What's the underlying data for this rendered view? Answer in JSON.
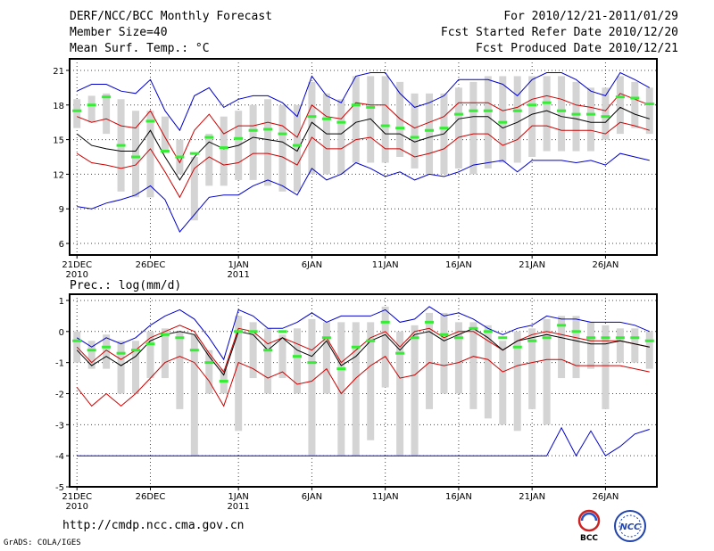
{
  "header": {
    "title": "DERF/NCC/BCC Monthly Forecast",
    "member_size": "Member Size=40",
    "variable": "Mean Surf. Temp.: °C",
    "period": "For 2010/12/21-2011/01/29",
    "started": "Fcst Started Refer Date 2010/12/20",
    "produced": "Fcst Produced Date 2010/12/21"
  },
  "footer": {
    "url": "http://cmdp.ncc.cma.gov.cn",
    "credit": "GrADS: COLA/IGES",
    "logo_bcc": "BCC",
    "logo_ncc": "NCC"
  },
  "colors": {
    "ensemble_mean": "#000000",
    "spread_lines": "#cc0000",
    "extremes": "#0000cc",
    "box": "#d4d4d4",
    "climatology": "#33ee33",
    "grid": "#444444"
  },
  "chart_data": [
    {
      "type": "line",
      "name": "temperature",
      "title": "Mean Surf. Temp.: °C",
      "xlabel": "",
      "ylabel": "°C",
      "xlim": [
        0.5,
        40.5
      ],
      "ylim": [
        5,
        22
      ],
      "yticks": [
        6,
        9,
        12,
        15,
        18,
        21
      ],
      "xticks": [
        {
          "day": 1,
          "label": "21DEC",
          "sub": "2010"
        },
        {
          "day": 6,
          "label": "26DEC",
          "sub": ""
        },
        {
          "day": 12,
          "label": "1JAN",
          "sub": "2011"
        },
        {
          "day": 17,
          "label": "6JAN",
          "sub": ""
        },
        {
          "day": 22,
          "label": "11JAN",
          "sub": ""
        },
        {
          "day": 27,
          "label": "16JAN",
          "sub": ""
        },
        {
          "day": 32,
          "label": "21JAN",
          "sub": ""
        },
        {
          "day": 37,
          "label": "26JAN",
          "sub": ""
        }
      ],
      "grid": true,
      "box_low": [
        16.0,
        16.5,
        15.5,
        10.5,
        10,
        10,
        14,
        12,
        8,
        11,
        11,
        11.5,
        11.5,
        11,
        10.5,
        10.5,
        12,
        12,
        12,
        13,
        13,
        13,
        13.5,
        12.5,
        12,
        12,
        12.5,
        12,
        12.5,
        13,
        13,
        13.5,
        14,
        14,
        14,
        14,
        15,
        15.5,
        16,
        15.5
      ],
      "box_high": [
        18.5,
        18.8,
        19.0,
        18.5,
        17.5,
        17.5,
        17.0,
        15.0,
        13.5,
        15.5,
        17.0,
        17.5,
        18.0,
        18.5,
        18.0,
        18.0,
        20.0,
        19.0,
        18.5,
        20.5,
        20.5,
        20.5,
        20.0,
        19.0,
        19.0,
        19.0,
        19.5,
        20.0,
        20.5,
        20.5,
        20.5,
        20.5,
        20.5,
        20.5,
        20.0,
        19.5,
        19.5,
        20.5,
        20.0,
        19.5
      ],
      "series": [
        {
          "name": "ensemble_max",
          "style": "extremes",
          "values": [
            19.2,
            19.8,
            19.8,
            19.2,
            19.0,
            20.2,
            17.5,
            15.8,
            18.8,
            19.5,
            17.8,
            18.5,
            18.8,
            18.8,
            18.2,
            17.0,
            20.5,
            18.8,
            18.2,
            20.5,
            20.8,
            20.8,
            19.0,
            17.8,
            18.2,
            18.8,
            20.2,
            20.2,
            20.2,
            19.8,
            18.8,
            20.2,
            20.8,
            20.8,
            20.2,
            19.2,
            18.8,
            20.8,
            20.2,
            19.5
          ]
        },
        {
          "name": "ensemble_upper",
          "style": "spread",
          "values": [
            17.0,
            16.5,
            16.8,
            16.2,
            16.0,
            17.5,
            15.2,
            13.0,
            15.8,
            17.2,
            15.5,
            16.2,
            16.2,
            16.5,
            16.2,
            15.2,
            18.0,
            17.0,
            16.8,
            18.2,
            18.0,
            18.0,
            16.8,
            16.0,
            16.5,
            17.0,
            18.2,
            18.2,
            18.2,
            17.5,
            17.8,
            18.5,
            18.8,
            18.5,
            18.0,
            17.8,
            17.5,
            19.0,
            18.5,
            18.0
          ]
        },
        {
          "name": "ensemble_mean",
          "style": "mean",
          "values": [
            15.5,
            14.5,
            14.2,
            14.0,
            14.0,
            15.8,
            13.5,
            11.5,
            13.5,
            14.8,
            14.2,
            14.5,
            15.2,
            15.0,
            14.8,
            14.0,
            16.5,
            15.5,
            15.5,
            16.5,
            16.8,
            15.5,
            15.5,
            14.8,
            15.2,
            15.5,
            16.8,
            17.0,
            17.0,
            16.0,
            16.5,
            17.2,
            17.5,
            17.0,
            16.8,
            16.5,
            16.5,
            17.8,
            17.2,
            16.8
          ]
        },
        {
          "name": "ensemble_lower",
          "style": "spread",
          "values": [
            13.8,
            13.0,
            12.8,
            12.5,
            12.8,
            14.2,
            12.2,
            10.0,
            12.5,
            13.5,
            12.8,
            13.0,
            13.8,
            13.8,
            13.5,
            12.8,
            15.2,
            14.2,
            14.2,
            15.0,
            15.2,
            14.2,
            14.2,
            13.5,
            13.8,
            14.2,
            15.2,
            15.5,
            15.5,
            14.5,
            15.0,
            16.2,
            16.2,
            15.8,
            15.8,
            15.8,
            15.5,
            16.5,
            16.2,
            15.8
          ]
        },
        {
          "name": "ensemble_min",
          "style": "extremes",
          "values": [
            9.2,
            9.0,
            9.5,
            9.8,
            10.2,
            11.0,
            9.8,
            7.0,
            8.5,
            10.0,
            10.2,
            10.2,
            11.0,
            11.5,
            11.0,
            10.2,
            12.5,
            11.5,
            12.0,
            13.0,
            12.5,
            11.8,
            12.2,
            11.5,
            12.0,
            11.8,
            12.2,
            12.8,
            13.0,
            13.2,
            12.2,
            13.2,
            13.2,
            13.2,
            13.0,
            13.2,
            12.8,
            13.8,
            13.5,
            13.2
          ]
        },
        {
          "name": "climatology",
          "style": "clim",
          "values": [
            17.5,
            18.0,
            18.7,
            14.5,
            13.5,
            16.6,
            14.0,
            13.5,
            13.8,
            15.2,
            14.3,
            15.1,
            15.8,
            15.9,
            15.5,
            14.5,
            17.0,
            16.8,
            16.5,
            18.0,
            17.8,
            16.2,
            16.0,
            15.2,
            15.8,
            16.0,
            17.2,
            17.5,
            17.5,
            16.5,
            17.5,
            18.0,
            18.2,
            17.5,
            17.2,
            17.2,
            17.0,
            18.7,
            18.6,
            18.1
          ]
        }
      ]
    },
    {
      "type": "line",
      "name": "precipitation",
      "title": "Prec.: log(mm/d)",
      "xlabel": "",
      "ylabel": "log(mm/d)",
      "xlim": [
        0.5,
        40.5
      ],
      "ylim": [
        -5,
        1.2
      ],
      "yticks": [
        -5,
        -4,
        -3,
        -2,
        -1,
        0,
        1
      ],
      "xticks": [
        {
          "day": 1,
          "label": "21DEC",
          "sub": "2010"
        },
        {
          "day": 6,
          "label": "26DEC",
          "sub": ""
        },
        {
          "day": 12,
          "label": "1JAN",
          "sub": "2011"
        },
        {
          "day": 17,
          "label": "6JAN",
          "sub": ""
        },
        {
          "day": 22,
          "label": "11JAN",
          "sub": ""
        },
        {
          "day": 27,
          "label": "16JAN",
          "sub": ""
        },
        {
          "day": 32,
          "label": "21JAN",
          "sub": ""
        },
        {
          "day": 37,
          "label": "26JAN",
          "sub": ""
        }
      ],
      "grid": true,
      "box_low": [
        -1.0,
        -1.2,
        -1.2,
        -2.0,
        -2.0,
        -1.5,
        -1.5,
        -2.5,
        -4.0,
        -2.0,
        -2.0,
        -3.2,
        -1.5,
        -2.0,
        -1.5,
        -2.0,
        -4.0,
        -2.0,
        -4.0,
        -4.0,
        -3.5,
        -1.8,
        -4.0,
        -4.0,
        -2.5,
        -2.0,
        -2.0,
        -2.5,
        -2.8,
        -3.0,
        -3.2,
        -2.5,
        -3.0,
        -1.5,
        -1.5,
        -1.2,
        -2.5,
        -1.0,
        -1.0,
        -1.2
      ],
      "box_high": [
        0,
        -0.3,
        -0.1,
        -0.3,
        -0.3,
        0,
        0.1,
        0,
        -0.1,
        -0.6,
        -1.2,
        0.5,
        0.3,
        0.1,
        -0.1,
        0.1,
        0.4,
        0.3,
        0.3,
        0.3,
        0.3,
        0.8,
        0,
        0.2,
        0.6,
        0.6,
        0.3,
        0.3,
        0.2,
        -0.3,
        0,
        0.1,
        0.4,
        0.5,
        0.5,
        0.3,
        0.2,
        0.1,
        0.1,
        0
      ],
      "series": [
        {
          "name": "ensemble_max",
          "style": "extremes",
          "values": [
            -0.2,
            -0.5,
            -0.2,
            -0.4,
            -0.2,
            0.2,
            0.5,
            0.7,
            0.4,
            -0.2,
            -0.9,
            0.7,
            0.5,
            0.1,
            0.1,
            0.3,
            0.6,
            0.3,
            0.5,
            0.5,
            0.5,
            0.7,
            0.3,
            0.4,
            0.8,
            0.5,
            0.6,
            0.4,
            0.1,
            -0.1,
            0.1,
            0.2,
            0.5,
            0.4,
            0.4,
            0.3,
            0.3,
            0.3,
            0.2,
            0
          ]
        },
        {
          "name": "ensemble_upper",
          "style": "spread",
          "values": [
            -0.5,
            -1.0,
            -0.6,
            -0.9,
            -0.6,
            -0.2,
            0,
            0.2,
            0,
            -0.7,
            -1.3,
            0.1,
            0,
            -0.4,
            -0.2,
            -0.4,
            -0.6,
            -0.2,
            -1.0,
            -0.6,
            -0.2,
            0,
            -0.5,
            0,
            0.1,
            -0.2,
            0,
            0,
            -0.3,
            -0.6,
            -0.3,
            -0.1,
            0,
            -0.1,
            -0.2,
            -0.3,
            -0.3,
            -0.3,
            -0.4,
            -0.5
          ]
        },
        {
          "name": "ensemble_mean",
          "style": "mean",
          "values": [
            -0.6,
            -1.1,
            -0.8,
            -1.1,
            -0.8,
            -0.3,
            -0.1,
            0,
            -0.1,
            -0.8,
            -1.4,
            0,
            -0.1,
            -0.6,
            -0.2,
            -0.6,
            -0.8,
            -0.3,
            -1.1,
            -0.8,
            -0.3,
            -0.1,
            -0.6,
            -0.1,
            0,
            -0.3,
            -0.1,
            0.1,
            -0.2,
            -0.6,
            -0.3,
            -0.2,
            -0.1,
            -0.2,
            -0.3,
            -0.4,
            -0.4,
            -0.3,
            -0.4,
            -0.5
          ]
        },
        {
          "name": "ensemble_lower",
          "style": "spread",
          "values": [
            -1.8,
            -2.4,
            -2.0,
            -2.4,
            -2.0,
            -1.5,
            -1.0,
            -0.8,
            -1.0,
            -1.6,
            -2.4,
            -1.0,
            -1.2,
            -1.5,
            -1.3,
            -1.7,
            -1.6,
            -1.2,
            -2.0,
            -1.5,
            -1.1,
            -0.8,
            -1.5,
            -1.4,
            -1.0,
            -1.1,
            -1.0,
            -0.8,
            -0.9,
            -1.3,
            -1.1,
            -1.0,
            -0.9,
            -0.9,
            -1.1,
            -1.1,
            -1.1,
            -1.1,
            -1.2,
            -1.3
          ]
        },
        {
          "name": "ensemble_min",
          "style": "extremes",
          "values": [
            -4,
            -4,
            -4,
            -4,
            -4,
            -4,
            -4,
            -4,
            -4,
            -4,
            -4,
            -4,
            -4,
            -4,
            -4,
            -4,
            -4,
            -4,
            -4,
            -4,
            -4,
            -4,
            -4,
            -4,
            -4,
            -4,
            -4,
            -4,
            -4,
            -4,
            -4,
            -4,
            -4,
            -3.1,
            -4,
            -3.2,
            -4,
            -3.7,
            -3.3,
            -3.15
          ]
        },
        {
          "name": "climatology",
          "style": "clim",
          "values": [
            -0.3,
            -0.6,
            -0.5,
            -0.7,
            -0.6,
            -0.4,
            -0.1,
            -0.2,
            -0.6,
            -1.0,
            -1.6,
            0,
            0.0,
            -0.6,
            0,
            -0.8,
            -1.0,
            -0.2,
            -1.2,
            -0.5,
            -0.3,
            0.3,
            -0.7,
            -0.2,
            0.3,
            -0.1,
            -0.2,
            0.1,
            0,
            -0.2,
            -0.5,
            -0.3,
            -0.2,
            0.2,
            0,
            -0.2,
            -0.2,
            -0.2,
            -0.2,
            -0.3
          ]
        }
      ]
    }
  ]
}
